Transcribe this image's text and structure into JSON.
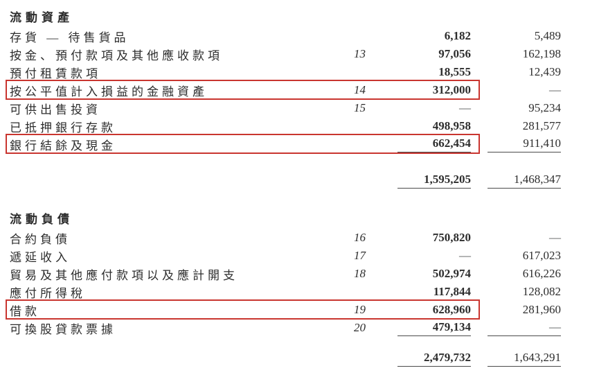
{
  "page": {
    "background_color": "#ffffff",
    "text_color": "#2d2d2d",
    "highlight_box_color": "#c9352f",
    "rule_color": "#4a4a4a",
    "nil_symbol": "—"
  },
  "sections": [
    {
      "header": "流動資產",
      "rows": [
        {
          "label": "存貨 — 待售貨品",
          "note": "",
          "current": "6,182",
          "prior": "5,489",
          "highlighted": false,
          "underline": false
        },
        {
          "label": "按金、預付款項及其他應收款項",
          "note": "13",
          "current": "97,056",
          "prior": "162,198",
          "highlighted": false,
          "underline": false
        },
        {
          "label": "預付租賃款項",
          "note": "",
          "current": "18,555",
          "prior": "12,439",
          "highlighted": false,
          "underline": false
        },
        {
          "label": "按公平值計入損益的金融資產",
          "note": "14",
          "current": "312,000",
          "prior": "—",
          "highlighted": true,
          "underline": false
        },
        {
          "label": "可供出售投資",
          "note": "15",
          "current": "—",
          "prior": "95,234",
          "highlighted": false,
          "underline": false
        },
        {
          "label": "已抵押銀行存款",
          "note": "",
          "current": "498,958",
          "prior": "281,577",
          "highlighted": false,
          "underline": false
        },
        {
          "label": "銀行結餘及現金",
          "note": "",
          "current": "662,454",
          "prior": "911,410",
          "highlighted": true,
          "underline": true
        }
      ],
      "total": {
        "current": "1,595,205",
        "prior": "1,468,347"
      }
    },
    {
      "header": "流動負債",
      "rows": [
        {
          "label": "合約負債",
          "note": "16",
          "current": "750,820",
          "prior": "—",
          "highlighted": false,
          "underline": false
        },
        {
          "label": "遞延收入",
          "note": "17",
          "current": "—",
          "prior": "617,023",
          "highlighted": false,
          "underline": false
        },
        {
          "label": "貿易及其他應付款項以及應計開支",
          "note": "18",
          "current": "502,974",
          "prior": "616,226",
          "highlighted": false,
          "underline": false
        },
        {
          "label": "應付所得稅",
          "note": "",
          "current": "117,844",
          "prior": "128,082",
          "highlighted": false,
          "underline": false
        },
        {
          "label": "借款",
          "note": "19",
          "current": "628,960",
          "prior": "281,960",
          "highlighted": true,
          "underline": false
        },
        {
          "label": "可換股貸款票據",
          "note": "20",
          "current": "479,134",
          "prior": "—",
          "highlighted": false,
          "underline": true
        }
      ],
      "total": {
        "current": "2,479,732",
        "prior": "1,643,291"
      }
    }
  ]
}
